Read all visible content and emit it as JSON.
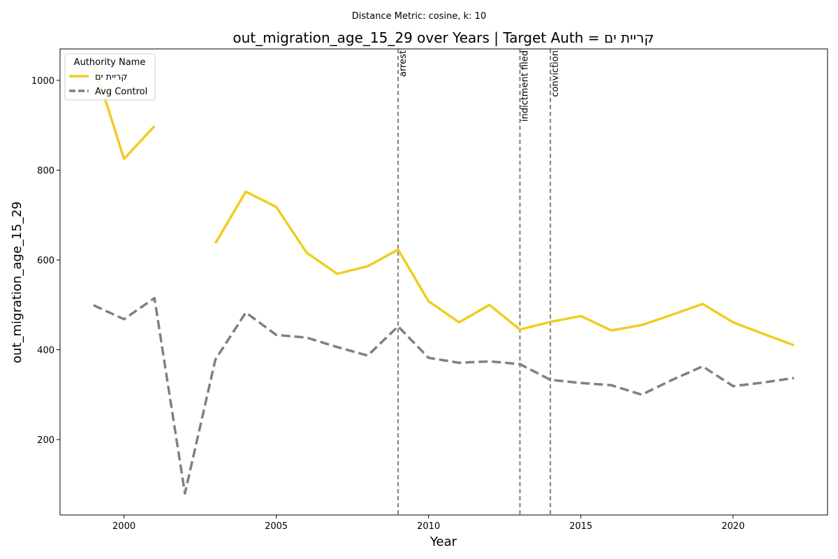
{
  "chart_data": {
    "type": "line",
    "suptitle": "Distance Metric: cosine, k: 10",
    "title": "out_migration_age_15_29 over Years | Target Auth = קריית ים",
    "xlabel": "Year",
    "ylabel": "out_migration_age_15_29",
    "xlim": [
      1997.9,
      2023.1
    ],
    "ylim": [
      32,
      1070
    ],
    "xticks": [
      2000,
      2005,
      2010,
      2015,
      2020
    ],
    "yticks": [
      200,
      400,
      600,
      800,
      1000
    ],
    "grid": false,
    "legend": {
      "title": "Authority Name",
      "placement": "top-left"
    },
    "series": [
      {
        "name": "קריית ים",
        "color": "#f2cc21",
        "style": "solid",
        "x": [
          1999,
          2000,
          2001,
          2002,
          2003,
          2004,
          2005,
          2006,
          2007,
          2008,
          2009,
          2010,
          2011,
          2012,
          2013,
          2014,
          2015,
          2016,
          2017,
          2018,
          2019,
          2020,
          2021,
          2022
        ],
        "values": [
          1040,
          825,
          898,
          null,
          637,
          752,
          718,
          616,
          569,
          586,
          623,
          508,
          461,
          500,
          445,
          462,
          475,
          443,
          455,
          478,
          502,
          461,
          435,
          410
        ]
      },
      {
        "name": "Avg Control",
        "color": "#808080",
        "style": "dashed",
        "x": [
          1999,
          2000,
          2001,
          2002,
          2003,
          2004,
          2005,
          2006,
          2007,
          2008,
          2009,
          2010,
          2011,
          2012,
          2013,
          2014,
          2015,
          2016,
          2017,
          2018,
          2019,
          2020,
          2021,
          2022
        ],
        "values": [
          499,
          468,
          515,
          80,
          378,
          483,
          433,
          427,
          406,
          387,
          452,
          382,
          371,
          374,
          368,
          333,
          326,
          321,
          300,
          333,
          363,
          319,
          327,
          337
        ]
      }
    ],
    "events": [
      {
        "x": 2009,
        "label": "arrest"
      },
      {
        "x": 2013,
        "label": "indictment filed"
      },
      {
        "x": 2014,
        "label": "conviction"
      }
    ]
  }
}
